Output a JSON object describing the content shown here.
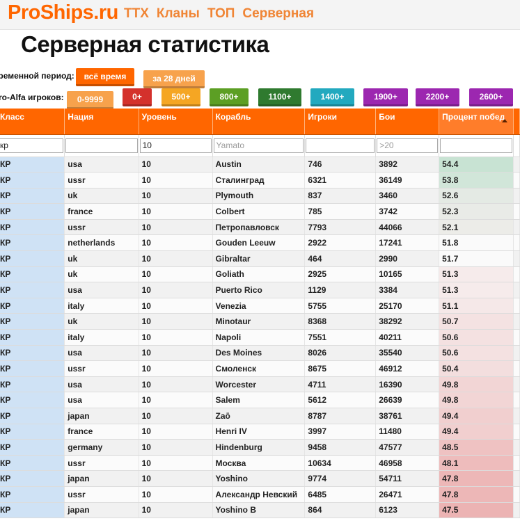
{
  "site": {
    "logo": "ProShips.ru",
    "nav": [
      "ТТХ",
      "Кланы",
      "ТОП",
      "Серверная"
    ]
  },
  "page_title": "Серверная статистика",
  "time_filter": {
    "label": "временной период:",
    "options": [
      "всё время",
      "за 28 дней"
    ],
    "selected": "всё время"
  },
  "player_filter": {
    "label": "ro-Alfa игроков:",
    "options": [
      {
        "label": "0-9999",
        "color": "#f7a24c"
      },
      {
        "label": "0+",
        "color": "#d4312c"
      },
      {
        "label": "500+",
        "color": "#f5a623"
      },
      {
        "label": "800+",
        "color": "#5c9f24"
      },
      {
        "label": "1100+",
        "color": "#2f7a2f"
      },
      {
        "label": "1400+",
        "color": "#22a9bf"
      },
      {
        "label": "1900+",
        "color": "#9c27b0"
      },
      {
        "label": "2200+",
        "color": "#9c27b0"
      },
      {
        "label": "2600+",
        "color": "#9c27b0"
      }
    ]
  },
  "table": {
    "columns": [
      "Класс",
      "Нация",
      "Уровень",
      "Корабль",
      "Игроки",
      "Бои",
      "Процент побед"
    ],
    "sorted_column": "Процент побед",
    "filters": {
      "class_value": "кр",
      "nation_value": "",
      "tier_value": "10",
      "ship_placeholder": "Yamato",
      "players_value": "",
      "battles_placeholder": ">20",
      "winrate_value": ""
    },
    "rows": [
      {
        "cls": "КР",
        "nation": "usa",
        "tier": "10",
        "ship": "Austin",
        "players": "746",
        "battles": "3892",
        "winrate": "54.4"
      },
      {
        "cls": "КР",
        "nation": "ussr",
        "tier": "10",
        "ship": "Сталинград",
        "players": "6321",
        "battles": "36149",
        "winrate": "53.8"
      },
      {
        "cls": "КР",
        "nation": "uk",
        "tier": "10",
        "ship": "Plymouth",
        "players": "837",
        "battles": "3460",
        "winrate": "52.6"
      },
      {
        "cls": "КР",
        "nation": "france",
        "tier": "10",
        "ship": "Colbert",
        "players": "785",
        "battles": "3742",
        "winrate": "52.3"
      },
      {
        "cls": "КР",
        "nation": "ussr",
        "tier": "10",
        "ship": "Петропавловск",
        "players": "7793",
        "battles": "44066",
        "winrate": "52.1"
      },
      {
        "cls": "КР",
        "nation": "netherlands",
        "tier": "10",
        "ship": "Gouden Leeuw",
        "players": "2922",
        "battles": "17241",
        "winrate": "51.8"
      },
      {
        "cls": "КР",
        "nation": "uk",
        "tier": "10",
        "ship": "Gibraltar",
        "players": "464",
        "battles": "2990",
        "winrate": "51.7"
      },
      {
        "cls": "КР",
        "nation": "uk",
        "tier": "10",
        "ship": "Goliath",
        "players": "2925",
        "battles": "10165",
        "winrate": "51.3"
      },
      {
        "cls": "КР",
        "nation": "usa",
        "tier": "10",
        "ship": "Puerto Rico",
        "players": "1129",
        "battles": "3384",
        "winrate": "51.3"
      },
      {
        "cls": "КР",
        "nation": "italy",
        "tier": "10",
        "ship": "Venezia",
        "players": "5755",
        "battles": "25170",
        "winrate": "51.1"
      },
      {
        "cls": "КР",
        "nation": "uk",
        "tier": "10",
        "ship": "Minotaur",
        "players": "8368",
        "battles": "38292",
        "winrate": "50.7"
      },
      {
        "cls": "КР",
        "nation": "italy",
        "tier": "10",
        "ship": "Napoli",
        "players": "7551",
        "battles": "40211",
        "winrate": "50.6"
      },
      {
        "cls": "КР",
        "nation": "usa",
        "tier": "10",
        "ship": "Des Moines",
        "players": "8026",
        "battles": "35540",
        "winrate": "50.6"
      },
      {
        "cls": "КР",
        "nation": "ussr",
        "tier": "10",
        "ship": "Смоленск",
        "players": "8675",
        "battles": "46912",
        "winrate": "50.4"
      },
      {
        "cls": "КР",
        "nation": "usa",
        "tier": "10",
        "ship": "Worcester",
        "players": "4711",
        "battles": "16390",
        "winrate": "49.8"
      },
      {
        "cls": "КР",
        "nation": "usa",
        "tier": "10",
        "ship": "Salem",
        "players": "5612",
        "battles": "26639",
        "winrate": "49.8"
      },
      {
        "cls": "КР",
        "nation": "japan",
        "tier": "10",
        "ship": "Zaō",
        "players": "8787",
        "battles": "38761",
        "winrate": "49.4"
      },
      {
        "cls": "КР",
        "nation": "france",
        "tier": "10",
        "ship": "Henri IV",
        "players": "3997",
        "battles": "11480",
        "winrate": "49.4"
      },
      {
        "cls": "КР",
        "nation": "germany",
        "tier": "10",
        "ship": "Hindenburg",
        "players": "9458",
        "battles": "47577",
        "winrate": "48.5"
      },
      {
        "cls": "КР",
        "nation": "ussr",
        "tier": "10",
        "ship": "Москва",
        "players": "10634",
        "battles": "46958",
        "winrate": "48.1"
      },
      {
        "cls": "КР",
        "nation": "japan",
        "tier": "10",
        "ship": "Yoshino",
        "players": "9774",
        "battles": "54711",
        "winrate": "47.8"
      },
      {
        "cls": "КР",
        "nation": "ussr",
        "tier": "10",
        "ship": "Александр Невский",
        "players": "6485",
        "battles": "26471",
        "winrate": "47.8"
      },
      {
        "cls": "КР",
        "nation": "japan",
        "tier": "10",
        "ship": "Yoshino B",
        "players": "864",
        "battles": "6123",
        "winrate": "47.5"
      }
    ]
  },
  "colors": {
    "accent": "#ff6600",
    "class_cell": "#cfe2f5",
    "winrate_high": "#c6e3d2",
    "winrate_low": "#ecb3b3"
  }
}
